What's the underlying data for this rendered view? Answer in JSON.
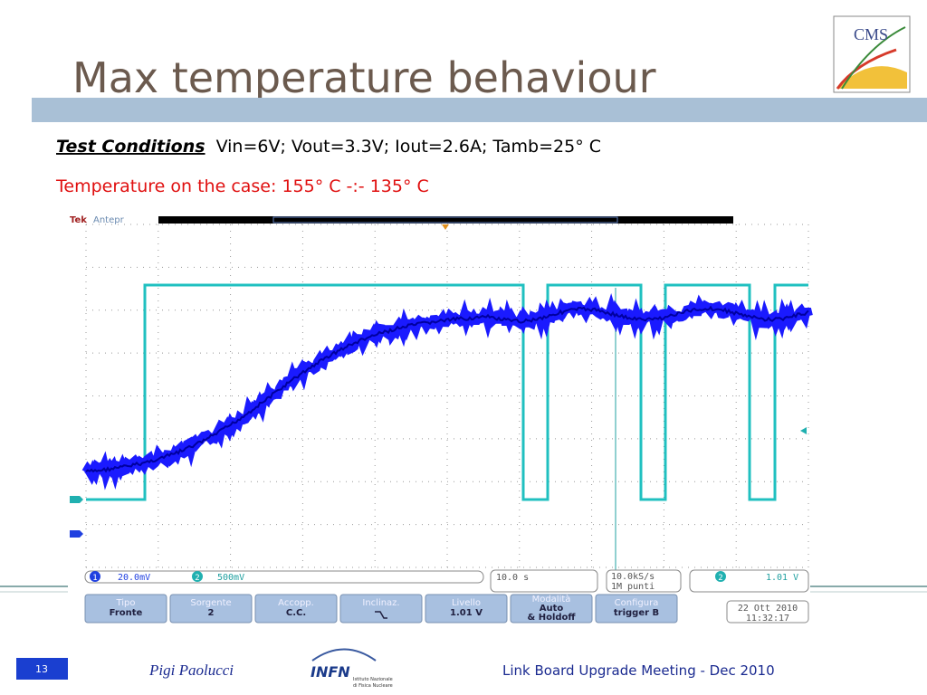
{
  "header": {
    "title": "Max temperature behaviour",
    "logo": "CMS"
  },
  "conditions": {
    "label": "Test Conditions",
    "text": "Vin=6V; Vout=3.3V; Iout=2.6A; Tamb=25° C"
  },
  "temperature": "Temperature on the case: 155° C -:- 135° C",
  "scope": {
    "brand": "Tek",
    "mode": "Antepr",
    "ch1_num": "1",
    "ch1": "20.0mV",
    "ch2_num": "2",
    "ch2": "500mV",
    "timebase": "10.0 s",
    "rate": "10.0kS/s",
    "points": "1M punti",
    "trigger_ch": "2",
    "trigger": "1.01 V",
    "menu": [
      {
        "lines": [
          "Tipo",
          "Fronte"
        ]
      },
      {
        "lines": [
          "Sorgente",
          "2"
        ]
      },
      {
        "lines": [
          "Accopp.",
          "C.C."
        ]
      },
      {
        "lines": [
          "Inclinaz."
        ]
      },
      {
        "lines": [
          "Livello",
          "1.01 V"
        ]
      },
      {
        "lines": [
          "Modalità",
          "Auto",
          "& Holdoff"
        ]
      },
      {
        "lines": [
          "Configura",
          "trigger B"
        ]
      }
    ],
    "date": "22 Ott 2010",
    "time": "11:32:17"
  },
  "footer": {
    "page": "13",
    "author": "Pigi Paolucci",
    "org": "INFN",
    "org_name": [
      "Istituto Nazionale",
      "di Fisica Nucleare"
    ],
    "event": "Link Board Upgrade Meeting - Dec 2010"
  }
}
